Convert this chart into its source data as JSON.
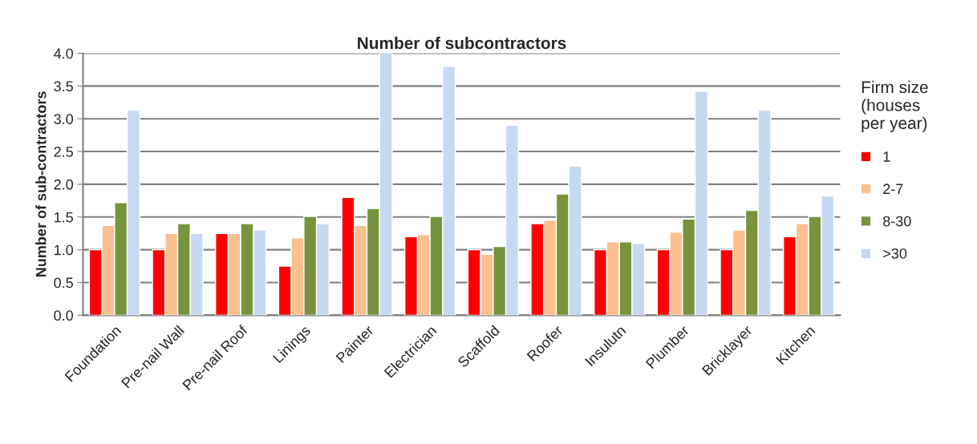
{
  "chart_data": {
    "type": "bar",
    "title": "Number of subcontractors",
    "ylabel": "Number of sub-contractors",
    "legend_title": "Firm size\n(houses\nper year)",
    "categories": [
      "Foundation",
      "Pre-nail Wall",
      "Pre-nail Roof",
      "Linings",
      "Painter",
      "Electrician",
      "Scaffold",
      "Roofer",
      "Insulutn",
      "Plumber",
      "Bricklayer",
      "Kitchen"
    ],
    "series": [
      {
        "name": "1",
        "color": "#ff0000",
        "values": [
          1.0,
          1.0,
          1.25,
          0.75,
          1.8,
          1.2,
          1.0,
          1.4,
          1.0,
          1.0,
          1.0,
          1.2
        ]
      },
      {
        "name": "2-7",
        "color": "#fac090",
        "values": [
          1.37,
          1.25,
          1.25,
          1.18,
          1.37,
          1.23,
          0.93,
          1.45,
          1.12,
          1.27,
          1.3,
          1.4
        ]
      },
      {
        "name": "8-30",
        "color": "#77933c",
        "values": [
          1.72,
          1.4,
          1.4,
          1.51,
          1.63,
          1.51,
          1.05,
          1.85,
          1.12,
          1.47,
          1.6,
          1.51
        ]
      },
      {
        "name": ">30",
        "color": "#c6d9f1",
        "values": [
          3.13,
          1.25,
          1.3,
          1.4,
          4.0,
          3.8,
          2.9,
          2.28,
          1.1,
          3.42,
          3.13,
          1.82
        ]
      }
    ],
    "ylim": [
      0,
      4.0
    ],
    "yticks": [
      {
        "value": 0,
        "label": "0.0"
      },
      {
        "value": 0.5,
        "label": "0.5"
      },
      {
        "value": 1.0,
        "label": "1.0"
      },
      {
        "value": 1.5,
        "label": "1.5"
      },
      {
        "value": 2.0,
        "label": "2.0"
      },
      {
        "value": 2.5,
        "label": "2.5"
      },
      {
        "value": 3.0,
        "label": "3.0"
      },
      {
        "value": 3.5,
        "label": "3.5"
      },
      {
        "value": 4.0,
        "label": "4.0"
      }
    ],
    "grid": "y",
    "legend": "right"
  }
}
